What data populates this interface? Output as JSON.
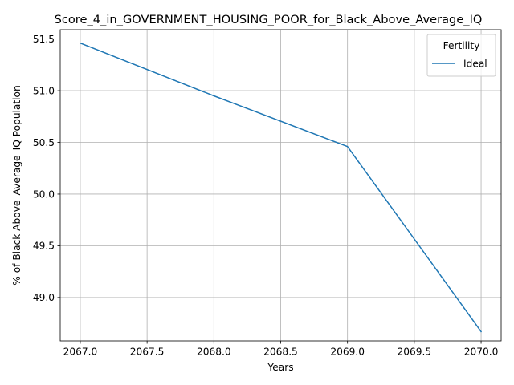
{
  "chart_data": {
    "type": "line",
    "title": "Score_4_in_GOVERNMENT_HOUSING_POOR_for_Black_Above_Average_IQ",
    "xlabel": "Years",
    "ylabel": "% of Black Above_Average_IQ Population",
    "x": [
      2067,
      2068,
      2069,
      2070
    ],
    "series": [
      {
        "name": "Ideal",
        "values": [
          51.46,
          50.95,
          50.46,
          48.67
        ],
        "color": "#1f77b4"
      }
    ],
    "xlim": [
      2066.85,
      2070.15
    ],
    "ylim": [
      48.58,
      51.59
    ],
    "xticks": [
      2067.0,
      2067.5,
      2068.0,
      2068.5,
      2069.0,
      2069.5,
      2070.0
    ],
    "xtick_labels": [
      "2067.0",
      "2067.5",
      "2068.0",
      "2068.5",
      "2069.0",
      "2069.5",
      "2070.0"
    ],
    "yticks": [
      49.0,
      49.5,
      50.0,
      50.5,
      51.0,
      51.5
    ],
    "ytick_labels": [
      "49.0",
      "49.5",
      "50.0",
      "50.5",
      "51.0",
      "51.5"
    ],
    "grid": true,
    "legend": {
      "title": "Fertility",
      "placement": "top-right"
    }
  }
}
